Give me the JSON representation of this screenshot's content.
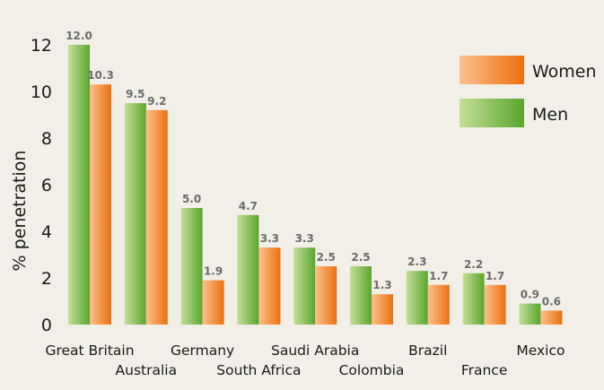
{
  "chart_data": {
    "type": "bar",
    "ylabel": "% penetration",
    "ylim": [
      0,
      12
    ],
    "yticks": [
      "0",
      "2",
      "4",
      "6",
      "8",
      "10",
      "12"
    ],
    "categories": [
      "Great Britain",
      "Australia",
      "Germany",
      "South Africa",
      "Saudi Arabia",
      "Colombia",
      "Brazil",
      "France",
      "Mexico"
    ],
    "series": [
      {
        "name": "Men",
        "values": [
          12.0,
          9.5,
          5.0,
          4.7,
          3.3,
          2.5,
          2.3,
          2.2,
          0.9
        ],
        "labels": [
          "12.0",
          "9.5",
          "5.0",
          "4.7",
          "3.3",
          "2.5",
          "2.3",
          "2.2",
          "0.9"
        ],
        "color_light": "#c4df98",
        "color_dark": "#5aa52c"
      },
      {
        "name": "Women",
        "values": [
          10.3,
          9.2,
          1.9,
          3.3,
          2.5,
          1.3,
          1.7,
          1.7,
          0.6
        ],
        "labels": [
          "10.3",
          "9.2",
          "1.9",
          "3.3",
          "2.5",
          "1.3",
          "1.7",
          "1.7",
          "0.6"
        ],
        "color_light": "#fbc08c",
        "color_dark": "#ec700f"
      }
    ],
    "legend": {
      "position": "top-right",
      "order": [
        "Women",
        "Men"
      ]
    },
    "grid": false
  }
}
